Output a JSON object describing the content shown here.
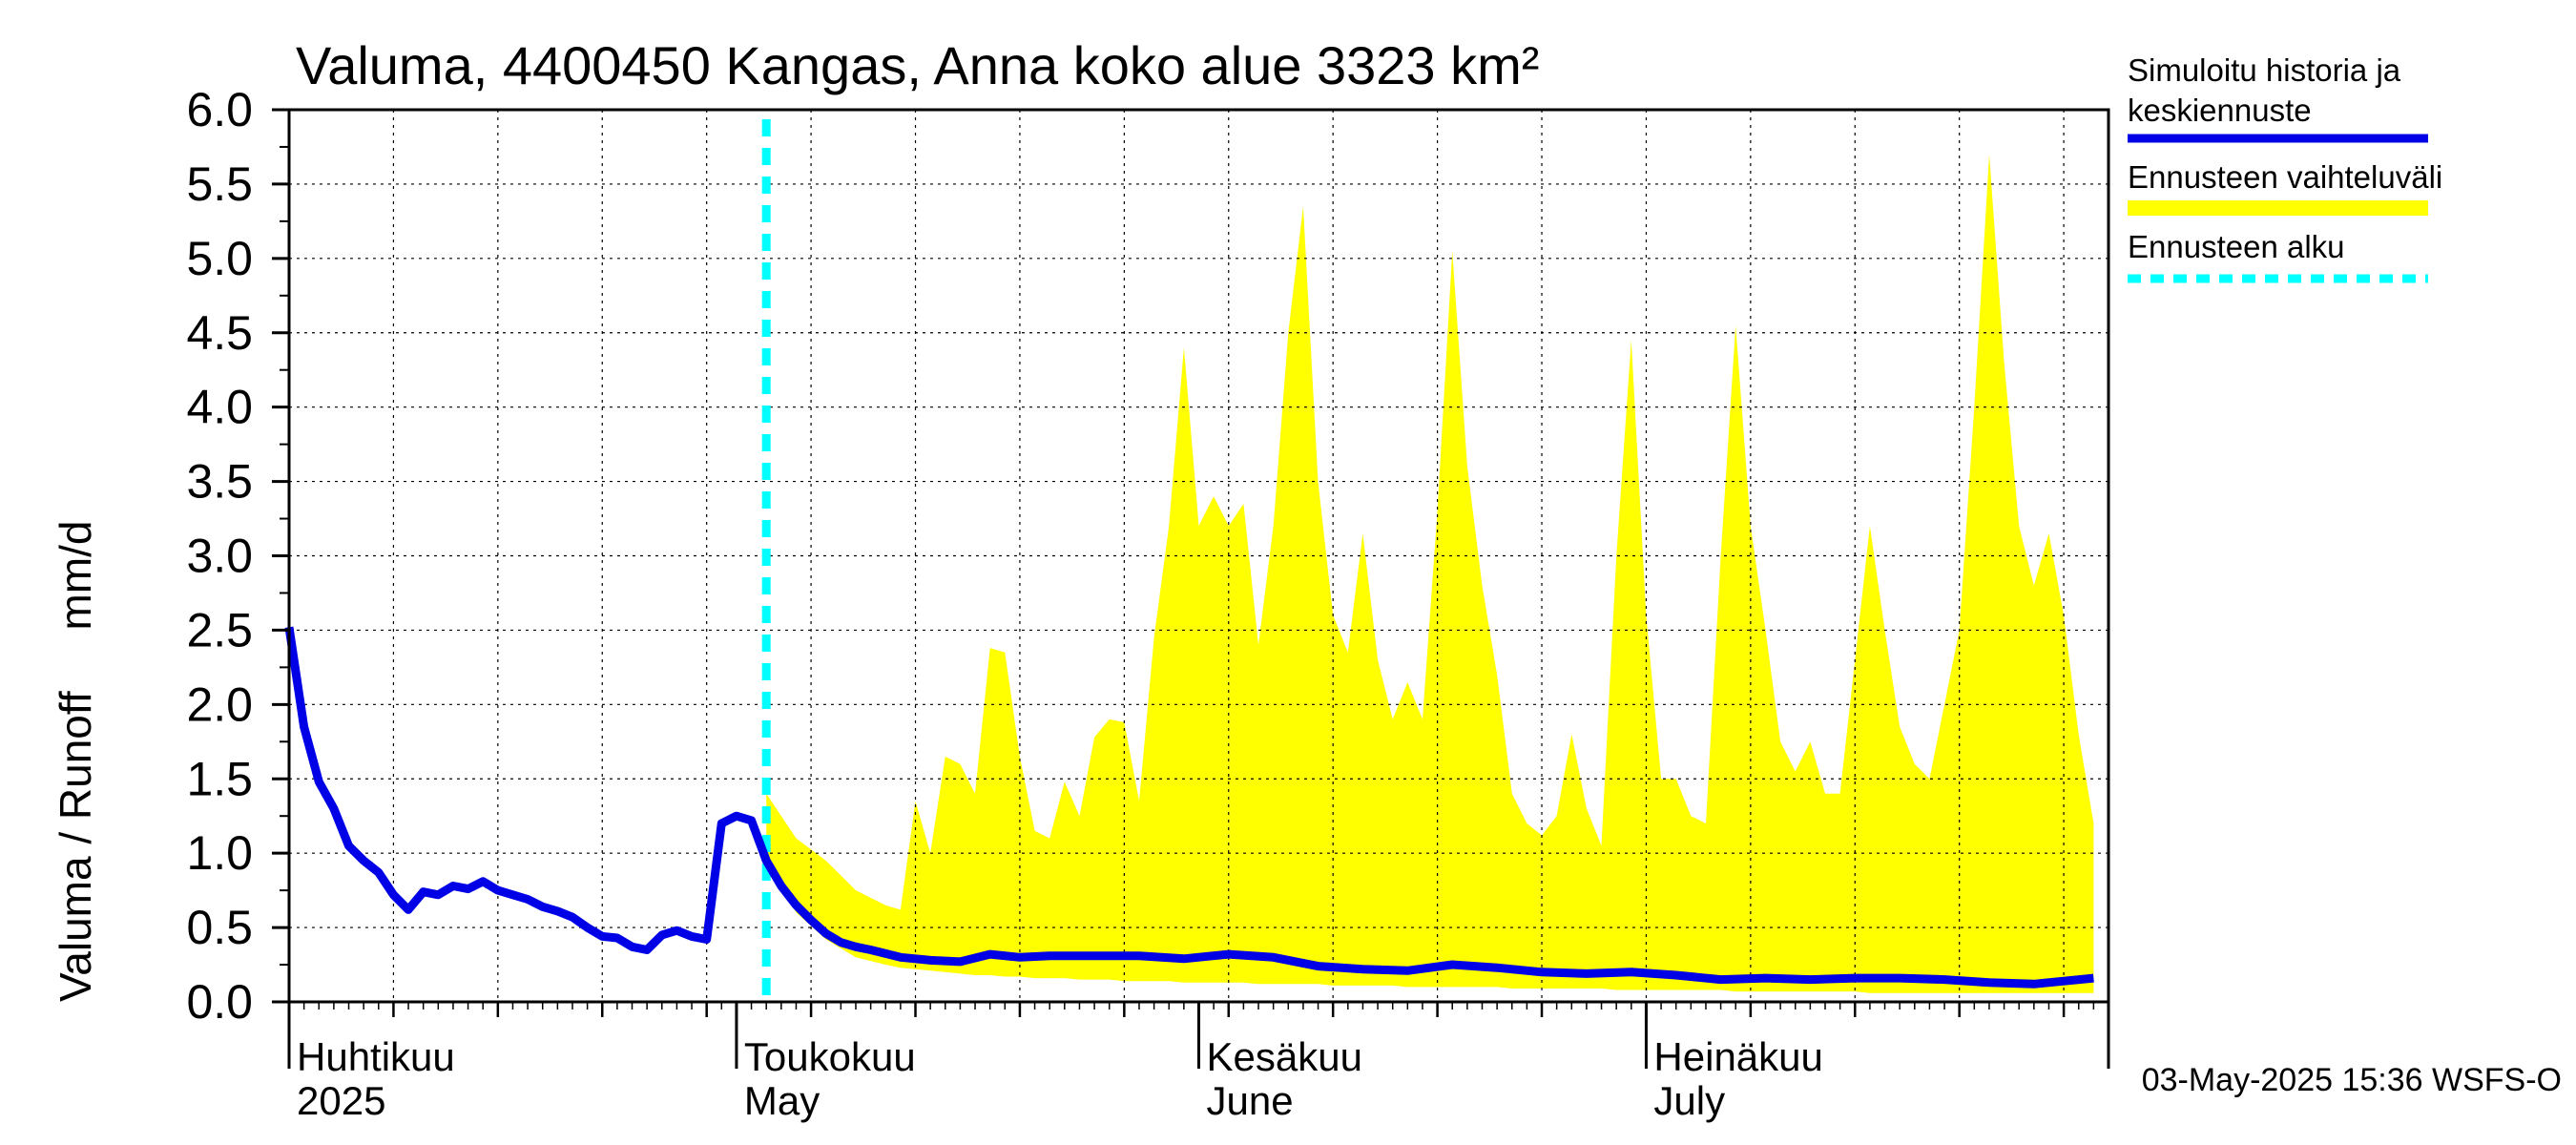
{
  "title": "Valuma, 4400450 Kangas, Anna koko alue 3323 km²",
  "footer": "03-May-2025 15:36 WSFS-O",
  "colors": {
    "history": "#0000e6",
    "band": "#ffff00",
    "forecast_start": "#00ffff",
    "grid": "#000000"
  },
  "chart_data": {
    "type": "area",
    "ylabel": "Valuma / Runoff     mm/d",
    "ylim": [
      0,
      6
    ],
    "yticks": [
      "0.0",
      "0.5",
      "1.0",
      "1.5",
      "2.0",
      "2.5",
      "3.0",
      "3.5",
      "4.0",
      "4.5",
      "5.0",
      "5.5",
      "6.0"
    ],
    "x_range": [
      "2025-04-01",
      "2025-07-31"
    ],
    "grid": true,
    "legend_position": "right",
    "month_labels": [
      {
        "date": "2025-04-01",
        "line1": "Huhtikuu",
        "line2": "2025"
      },
      {
        "date": "2025-05-01",
        "line1": "Toukokuu",
        "line2": "May"
      },
      {
        "date": "2025-06-01",
        "line1": "Kesäkuu",
        "line2": "June"
      },
      {
        "date": "2025-07-01",
        "line1": "Heinäkuu",
        "line2": "July"
      }
    ],
    "legend": [
      {
        "key": "history",
        "lines": [
          "Simuloitu historia ja",
          "keskiennuste"
        ]
      },
      {
        "key": "band",
        "lines": [
          "Ennusteen vaihteluväli"
        ]
      },
      {
        "key": "forecast_start",
        "lines": [
          "Ennusteen alku"
        ]
      }
    ],
    "forecast_start": "2025-05-03",
    "series": [
      {
        "key": "history",
        "name": "Simuloitu historia ja keskiennuste",
        "x": [
          "2025-04-01",
          "2025-04-02",
          "2025-04-03",
          "2025-04-04",
          "2025-04-05",
          "2025-04-06",
          "2025-04-07",
          "2025-04-08",
          "2025-04-09",
          "2025-04-10",
          "2025-04-11",
          "2025-04-12",
          "2025-04-13",
          "2025-04-14",
          "2025-04-15",
          "2025-04-16",
          "2025-04-17",
          "2025-04-18",
          "2025-04-19",
          "2025-04-20",
          "2025-04-21",
          "2025-04-22",
          "2025-04-23",
          "2025-04-24",
          "2025-04-25",
          "2025-04-26",
          "2025-04-27",
          "2025-04-28",
          "2025-04-29",
          "2025-04-30",
          "2025-05-01",
          "2025-05-02",
          "2025-05-03",
          "2025-05-04",
          "2025-05-05",
          "2025-05-06",
          "2025-05-07",
          "2025-05-08",
          "2025-05-09",
          "2025-05-10",
          "2025-05-12",
          "2025-05-14",
          "2025-05-16",
          "2025-05-18",
          "2025-05-20",
          "2025-05-22",
          "2025-05-25",
          "2025-05-28",
          "2025-05-31",
          "2025-06-03",
          "2025-06-06",
          "2025-06-09",
          "2025-06-12",
          "2025-06-15",
          "2025-06-18",
          "2025-06-21",
          "2025-06-24",
          "2025-06-27",
          "2025-06-30",
          "2025-07-03",
          "2025-07-06",
          "2025-07-09",
          "2025-07-12",
          "2025-07-15",
          "2025-07-18",
          "2025-07-21",
          "2025-07-24",
          "2025-07-27",
          "2025-07-31"
        ],
        "values": [
          2.52,
          1.85,
          1.48,
          1.3,
          1.05,
          0.95,
          0.87,
          0.72,
          0.62,
          0.74,
          0.72,
          0.78,
          0.76,
          0.81,
          0.75,
          0.72,
          0.69,
          0.64,
          0.61,
          0.57,
          0.5,
          0.44,
          0.43,
          0.37,
          0.35,
          0.45,
          0.48,
          0.44,
          0.42,
          1.2,
          1.25,
          1.22,
          0.95,
          0.78,
          0.65,
          0.55,
          0.46,
          0.4,
          0.37,
          0.35,
          0.3,
          0.28,
          0.27,
          0.32,
          0.3,
          0.31,
          0.31,
          0.31,
          0.29,
          0.32,
          0.3,
          0.24,
          0.22,
          0.21,
          0.25,
          0.23,
          0.2,
          0.19,
          0.2,
          0.18,
          0.15,
          0.16,
          0.15,
          0.16,
          0.16,
          0.15,
          0.13,
          0.12,
          0.16
        ]
      },
      {
        "key": "band",
        "name": "Ennusteen vaihteluväli",
        "x": [
          "2025-05-03",
          "2025-05-05",
          "2025-05-07",
          "2025-05-09",
          "2025-05-11",
          "2025-05-12",
          "2025-05-13",
          "2025-05-14",
          "2025-05-15",
          "2025-05-16",
          "2025-05-17",
          "2025-05-18",
          "2025-05-19",
          "2025-05-20",
          "2025-05-21",
          "2025-05-22",
          "2025-05-23",
          "2025-05-24",
          "2025-05-25",
          "2025-05-26",
          "2025-05-27",
          "2025-05-28",
          "2025-05-29",
          "2025-05-30",
          "2025-05-31",
          "2025-06-01",
          "2025-06-02",
          "2025-06-03",
          "2025-06-04",
          "2025-06-05",
          "2025-06-06",
          "2025-06-07",
          "2025-06-08",
          "2025-06-09",
          "2025-06-10",
          "2025-06-11",
          "2025-06-12",
          "2025-06-13",
          "2025-06-14",
          "2025-06-15",
          "2025-06-16",
          "2025-06-17",
          "2025-06-18",
          "2025-06-19",
          "2025-06-20",
          "2025-06-21",
          "2025-06-22",
          "2025-06-23",
          "2025-06-24",
          "2025-06-25",
          "2025-06-26",
          "2025-06-27",
          "2025-06-28",
          "2025-06-29",
          "2025-06-30",
          "2025-07-01",
          "2025-07-02",
          "2025-07-03",
          "2025-07-04",
          "2025-07-05",
          "2025-07-06",
          "2025-07-07",
          "2025-07-08",
          "2025-07-09",
          "2025-07-10",
          "2025-07-11",
          "2025-07-12",
          "2025-07-13",
          "2025-07-14",
          "2025-07-15",
          "2025-07-16",
          "2025-07-17",
          "2025-07-18",
          "2025-07-19",
          "2025-07-20",
          "2025-07-21",
          "2025-07-22",
          "2025-07-23",
          "2025-07-24",
          "2025-07-25",
          "2025-07-26",
          "2025-07-27",
          "2025-07-28",
          "2025-07-29",
          "2025-07-30",
          "2025-07-31"
        ],
        "upper": [
          1.4,
          1.1,
          0.95,
          0.75,
          0.65,
          0.62,
          1.35,
          1.0,
          1.65,
          1.6,
          1.4,
          2.38,
          2.35,
          1.65,
          1.15,
          1.1,
          1.48,
          1.25,
          1.78,
          1.9,
          1.88,
          1.35,
          2.45,
          3.2,
          4.4,
          3.2,
          3.4,
          3.2,
          3.35,
          2.4,
          3.2,
          4.5,
          5.35,
          3.5,
          2.6,
          2.35,
          3.15,
          2.3,
          1.9,
          2.15,
          1.9,
          3.3,
          5.05,
          3.6,
          2.8,
          2.2,
          1.4,
          1.2,
          1.12,
          1.25,
          1.8,
          1.3,
          1.05,
          3.0,
          4.45,
          2.6,
          1.5,
          1.5,
          1.25,
          1.2,
          3.0,
          4.55,
          3.2,
          2.5,
          1.75,
          1.55,
          1.75,
          1.4,
          1.4,
          2.3,
          3.2,
          2.5,
          1.85,
          1.6,
          1.5,
          2.0,
          2.5,
          4.0,
          5.7,
          4.3,
          3.2,
          2.8,
          3.15,
          2.6,
          1.8,
          1.2
        ],
        "lower": [
          0.95,
          0.6,
          0.42,
          0.3,
          0.25,
          0.23,
          0.22,
          0.21,
          0.2,
          0.19,
          0.18,
          0.18,
          0.17,
          0.17,
          0.16,
          0.16,
          0.16,
          0.15,
          0.15,
          0.15,
          0.14,
          0.14,
          0.14,
          0.14,
          0.13,
          0.13,
          0.13,
          0.13,
          0.13,
          0.12,
          0.12,
          0.12,
          0.12,
          0.12,
          0.11,
          0.11,
          0.11,
          0.11,
          0.11,
          0.1,
          0.1,
          0.1,
          0.1,
          0.1,
          0.1,
          0.1,
          0.09,
          0.09,
          0.09,
          0.09,
          0.09,
          0.09,
          0.09,
          0.08,
          0.08,
          0.08,
          0.08,
          0.08,
          0.08,
          0.08,
          0.08,
          0.07,
          0.07,
          0.07,
          0.07,
          0.07,
          0.07,
          0.07,
          0.07,
          0.07,
          0.06,
          0.06,
          0.06,
          0.06,
          0.06,
          0.06,
          0.06,
          0.06,
          0.06,
          0.06,
          0.06,
          0.06,
          0.06,
          0.06,
          0.06,
          0.06
        ]
      }
    ]
  }
}
